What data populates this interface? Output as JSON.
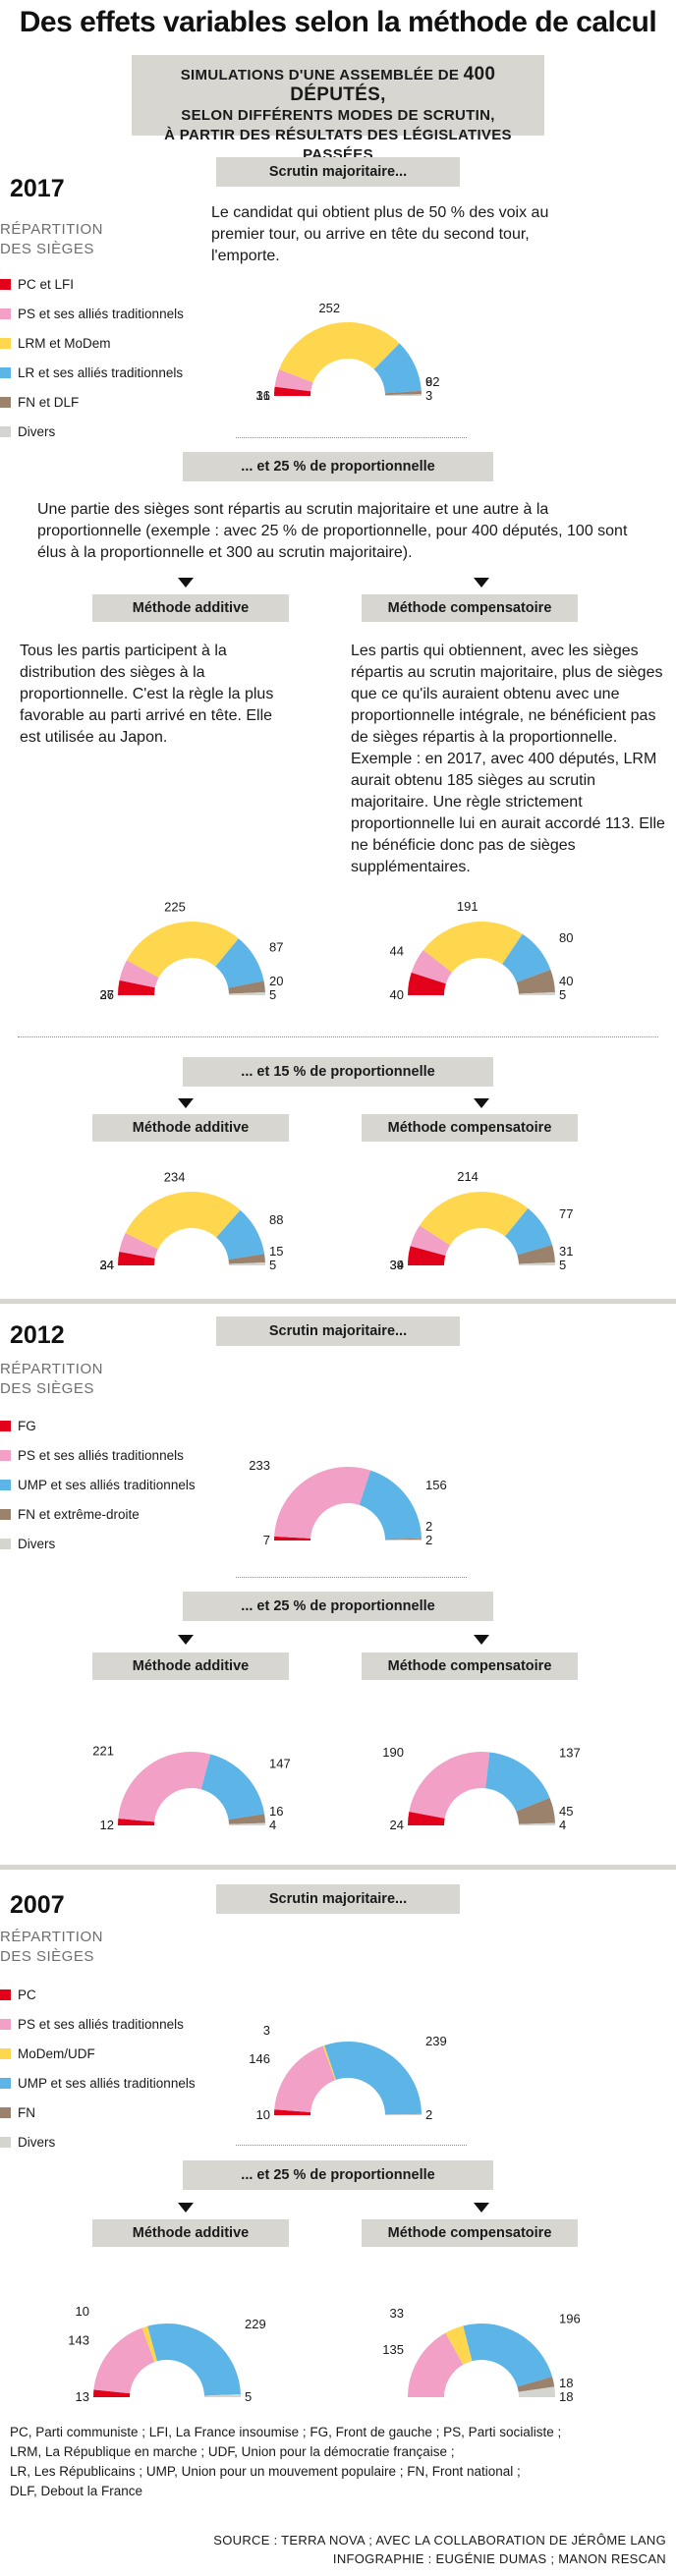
{
  "title": "Des effets variables selon la méthode de calcul",
  "subtitle": {
    "line1_pre": "Simulations d'une assemblée de ",
    "line1_big": "400 députés,",
    "line2": "selon différents modes de scrutin,",
    "line3": "à partir des résultats des législatives passées"
  },
  "colors": {
    "red": "#e2001a",
    "pink": "#f2a0c6",
    "yellow": "#ffd74e",
    "blue": "#5db4e6",
    "brown": "#9b826d",
    "grey": "#d4d4d0"
  },
  "labels": {
    "repartition_1": "RÉPARTITION",
    "repartition_2": "DES SIÈGES",
    "scrutin_majoritaire": "Scrutin majoritaire...",
    "p25": "... et 25 % de proportionnelle",
    "p15": "... et 15 % de proportionnelle",
    "additive": "Méthode additive",
    "compensatoire": "Méthode compensatoire"
  },
  "texts": {
    "majoritaire": "Le candidat qui obtient plus de 50 % des voix au premier tour, ou arrive en tête du second tour, l'emporte.",
    "proportionnelle": "Une partie des sièges sont répartis au scrutin majoritaire et une autre à la proportionnelle (exemple : avec 25 % de proportionnelle, pour 400 députés, 100 sont élus à la proportionnelle et 300 au scrutin majoritaire).",
    "additive": "Tous les partis participent à la distribution des sièges à la proportionnelle. C'est la règle la plus favorable au parti arrivé en tête. Elle est utilisée au Japon.",
    "compensatoire": "Les partis qui obtiennent, avec les sièges répartis au scrutin majoritaire, plus de sièges que ce qu'ils auraient obtenu avec une proportionnelle intégrale, ne bénéficient pas de sièges répartis à la proportionnelle. Exemple : en 2017, avec 400 députés, LRM aurait obtenu 185 sièges au scrutin majoritaire. Une règle strictement proportionnelle lui en aurait accordé 113. Elle ne bénéficie donc pas de sièges supplémentaires."
  },
  "years": [
    {
      "year": "2017",
      "legend": [
        {
          "label": "PC et LFI",
          "color": "red"
        },
        {
          "label": "PS et ses alliés traditionnels",
          "color": "pink"
        },
        {
          "label": "LRM et MoDem",
          "color": "yellow"
        },
        {
          "label": "LR et ses alliés traditionnels",
          "color": "blue"
        },
        {
          "label": "FN et DLF",
          "color": "brown"
        },
        {
          "label": "Divers",
          "color": "grey"
        }
      ]
    },
    {
      "year": "2012",
      "legend": [
        {
          "label": "FG",
          "color": "red"
        },
        {
          "label": "PS et ses alliés traditionnels",
          "color": "pink"
        },
        {
          "label": "UMP et ses alliés traditionnels",
          "color": "blue"
        },
        {
          "label": "FN et extrême-droite",
          "color": "brown"
        },
        {
          "label": "Divers",
          "color": "grey"
        }
      ]
    },
    {
      "year": "2007",
      "legend": [
        {
          "label": "PC",
          "color": "red"
        },
        {
          "label": "PS et ses alliés traditionnels",
          "color": "pink"
        },
        {
          "label": "MoDem/UDF",
          "color": "yellow"
        },
        {
          "label": "UMP et ses alliés traditionnels",
          "color": "blue"
        },
        {
          "label": "FN",
          "color": "brown"
        },
        {
          "label": "Divers",
          "color": "grey"
        }
      ]
    }
  ],
  "chart_data": [
    {
      "type": "pie",
      "id": "2017-maj",
      "year": "2017",
      "method": "Scrutin majoritaire...",
      "categories": [
        "PC et LFI",
        "PS et ses alliés traditionnels",
        "LRM et MoDem",
        "LR et ses alliés traditionnels",
        "FN et DLF",
        "Divers"
      ],
      "values": [
        16,
        31,
        252,
        92,
        6,
        3
      ]
    },
    {
      "type": "pie",
      "id": "2017-25-add",
      "year": "2017",
      "method": "Méthode additive",
      "categories": [
        "PC et LFI",
        "PS et ses alliés traditionnels",
        "LRM et MoDem",
        "LR et ses alliés traditionnels",
        "FN et DLF",
        "Divers"
      ],
      "values": [
        26,
        37,
        225,
        87,
        20,
        5
      ]
    },
    {
      "type": "pie",
      "id": "2017-25-comp",
      "year": "2017",
      "method": "Méthode compensatoire",
      "categories": [
        "PC et LFI",
        "PS et ses alliés traditionnels",
        "LRM et MoDem",
        "LR et ses alliés traditionnels",
        "FN et DLF",
        "Divers"
      ],
      "values": [
        40,
        44,
        191,
        80,
        40,
        5
      ]
    },
    {
      "type": "pie",
      "id": "2017-15-add",
      "year": "2017",
      "method": "Méthode additive",
      "categories": [
        "PC et LFI",
        "PS et ses alliés traditionnels",
        "LRM et MoDem",
        "LR et ses alliés traditionnels",
        "FN et DLF",
        "Divers"
      ],
      "values": [
        24,
        34,
        234,
        88,
        15,
        5
      ]
    },
    {
      "type": "pie",
      "id": "2017-15-comp",
      "year": "2017",
      "method": "Méthode compensatoire",
      "categories": [
        "PC et LFI",
        "PS et ses alliés traditionnels",
        "LRM et MoDem",
        "LR et ses alliés traditionnels",
        "FN et DLF",
        "Divers"
      ],
      "values": [
        34,
        39,
        214,
        77,
        31,
        5
      ]
    },
    {
      "type": "pie",
      "id": "2012-maj",
      "year": "2012",
      "method": "Scrutin majoritaire...",
      "categories": [
        "FG",
        "PS et ses alliés traditionnels",
        "UMP et ses alliés traditionnels",
        "FN et extrême-droite",
        "Divers"
      ],
      "values": [
        7,
        233,
        156,
        2,
        2
      ]
    },
    {
      "type": "pie",
      "id": "2012-25-add",
      "year": "2012",
      "method": "Méthode additive",
      "categories": [
        "FG",
        "PS et ses alliés traditionnels",
        "UMP et ses alliés traditionnels",
        "FN et extrême-droite",
        "Divers"
      ],
      "values": [
        12,
        221,
        147,
        16,
        4
      ]
    },
    {
      "type": "pie",
      "id": "2012-25-comp",
      "year": "2012",
      "method": "Méthode compensatoire",
      "categories": [
        "FG",
        "PS et ses alliés traditionnels",
        "UMP et ses alliés traditionnels",
        "FN et extrême-droite",
        "Divers"
      ],
      "values": [
        24,
        190,
        137,
        45,
        4
      ]
    },
    {
      "type": "pie",
      "id": "2007-maj",
      "year": "2007",
      "method": "Scrutin majoritaire...",
      "categories": [
        "PC",
        "PS et ses alliés traditionnels",
        "MoDem/UDF",
        "UMP et ses alliés traditionnels",
        "FN",
        "Divers"
      ],
      "values": [
        10,
        146,
        3,
        239,
        0,
        2
      ]
    },
    {
      "type": "pie",
      "id": "2007-25-add",
      "year": "2007",
      "method": "Méthode additive",
      "categories": [
        "PC",
        "PS et ses alliés traditionnels",
        "MoDem/UDF",
        "UMP et ses alliés traditionnels",
        "FN",
        "Divers"
      ],
      "values": [
        13,
        143,
        10,
        229,
        0,
        5
      ]
    },
    {
      "type": "pie",
      "id": "2007-25-comp",
      "year": "2007",
      "method": "Méthode compensatoire",
      "categories": [
        "PC",
        "PS et ses alliés traditionnels",
        "MoDem/UDF",
        "UMP et ses alliés traditionnels",
        "FN",
        "Divers"
      ],
      "values": [
        0,
        135,
        33,
        196,
        18,
        18
      ]
    }
  ],
  "footnotes": [
    "PC, Parti communiste ; LFI, La France insoumise ; FG, Front de gauche ; PS, Parti socialiste ;",
    "LRM, La République en marche ; UDF, Union pour la démocratie française ;",
    "LR, Les Républicains ; UMP, Union pour un mouvement populaire ; FN, Front national ;",
    "DLF, Debout la France"
  ],
  "source": "SOURCE : TERRA NOVA ; AVEC LA COLLABORATION DE JÉRÔME LANG",
  "credits": "INFOGRAPHIE : EUGÉNIE DUMAS ; MANON RESCAN"
}
